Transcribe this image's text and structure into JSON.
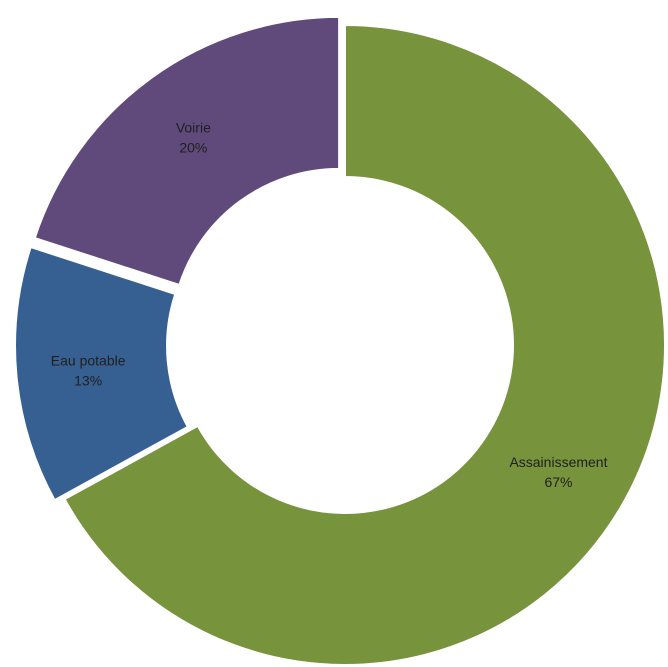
{
  "chart_data": {
    "type": "pie",
    "style": "donut",
    "title": "",
    "legend": "none",
    "slices": [
      {
        "name": "Assainissement",
        "value": 67,
        "label": "67%",
        "color": "#77933C",
        "exploded": false
      },
      {
        "name": "Eau potable",
        "value": 13,
        "label": "13%",
        "color": "#376092",
        "exploded": true
      },
      {
        "name": "Voirie",
        "value": 20,
        "label": "20%",
        "color": "#604A7B",
        "exploded": true
      }
    ],
    "background": "#FFFFFF"
  }
}
